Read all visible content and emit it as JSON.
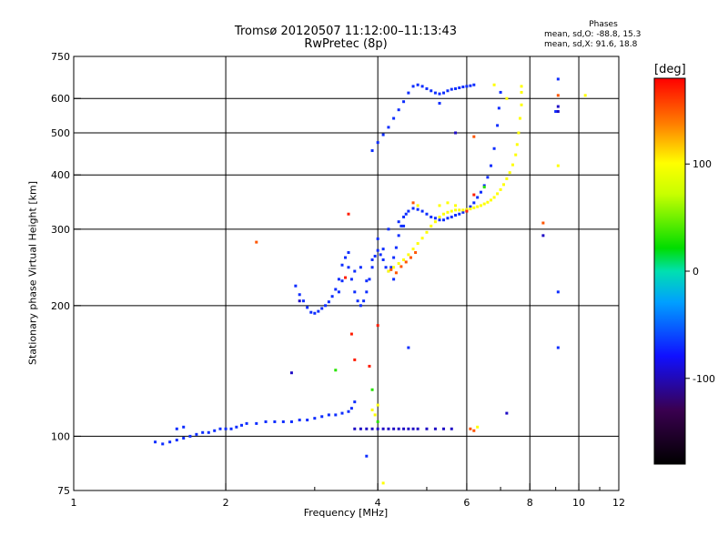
{
  "header": {
    "title": "Tromsø 20120507 11:12:00–11:13:43",
    "subtitle": "RwPretec (8p)"
  },
  "phases": {
    "title": "Phases",
    "line_o": "mean, sd,O: -88.8, 15.3",
    "line_x": "mean, sd,X:  91.6, 18.8"
  },
  "colorbar": {
    "unit": "[deg]",
    "ticks": [
      "100",
      "0",
      "-100"
    ],
    "tick_values": [
      100,
      0,
      -100
    ],
    "range": [
      -180,
      180
    ]
  },
  "chart_data": {
    "type": "scatter",
    "title": "Tromsø 20120507 11:12:00–11:13:43",
    "subtitle": "RwPretec (8p)",
    "xlabel": "Frequency [MHz]",
    "ylabel": "Stationary phase Virtual Height [km]",
    "xscale": "log",
    "yscale": "log",
    "xlim": [
      1,
      12
    ],
    "ylim": [
      75,
      750
    ],
    "xticks": [
      1,
      2,
      4,
      6,
      8,
      10,
      12
    ],
    "xtick_labels": [
      "1",
      "2",
      "4",
      "6",
      "8",
      "10",
      "12"
    ],
    "xgrid": [
      2,
      4,
      6,
      8,
      10
    ],
    "xminor": [
      3,
      5,
      7,
      9,
      11
    ],
    "yticks": [
      75,
      100,
      200,
      300,
      400,
      500,
      600,
      750
    ],
    "ytick_labels": [
      "75",
      "100",
      "200",
      "300",
      "400",
      "500",
      "600",
      "750"
    ],
    "ygrid": [
      100,
      200,
      300,
      400,
      500,
      600
    ],
    "grid": true,
    "color_scale": "phase [deg], -180 to 180",
    "series": [
      {
        "mode": "O",
        "phase_deg": -90,
        "points": [
          [
            1.45,
            97
          ],
          [
            1.5,
            96
          ],
          [
            1.55,
            97
          ],
          [
            1.6,
            98
          ],
          [
            1.65,
            99
          ],
          [
            1.7,
            100
          ],
          [
            1.75,
            101
          ],
          [
            1.8,
            102
          ],
          [
            1.85,
            102
          ],
          [
            1.9,
            103
          ],
          [
            1.95,
            104
          ],
          [
            2.0,
            104
          ],
          [
            2.05,
            104
          ],
          [
            2.1,
            105
          ],
          [
            2.15,
            106
          ],
          [
            2.2,
            107
          ],
          [
            2.3,
            107
          ],
          [
            2.4,
            108
          ],
          [
            2.5,
            108
          ],
          [
            2.6,
            108
          ],
          [
            2.7,
            108
          ],
          [
            2.8,
            109
          ],
          [
            2.9,
            109
          ],
          [
            3.0,
            110
          ],
          [
            3.1,
            111
          ],
          [
            3.2,
            112
          ],
          [
            3.3,
            112
          ],
          [
            3.4,
            113
          ],
          [
            3.5,
            114
          ],
          [
            3.55,
            116
          ],
          [
            3.6,
            120
          ],
          [
            1.6,
            104
          ],
          [
            1.65,
            105
          ],
          [
            2.75,
            222
          ],
          [
            2.8,
            212
          ],
          [
            2.85,
            205
          ],
          [
            2.9,
            198
          ],
          [
            2.95,
            193
          ],
          [
            3.0,
            192
          ],
          [
            3.05,
            194
          ],
          [
            3.1,
            197
          ],
          [
            3.15,
            200
          ],
          [
            3.2,
            204
          ],
          [
            3.25,
            210
          ],
          [
            3.3,
            218
          ],
          [
            3.35,
            230
          ],
          [
            3.4,
            248
          ],
          [
            3.45,
            258
          ],
          [
            3.5,
            245
          ],
          [
            3.55,
            230
          ],
          [
            3.6,
            215
          ],
          [
            3.65,
            205
          ],
          [
            3.7,
            200
          ],
          [
            3.75,
            205
          ],
          [
            3.8,
            215
          ],
          [
            3.85,
            230
          ],
          [
            3.9,
            245
          ],
          [
            3.95,
            260
          ],
          [
            4.0,
            268
          ],
          [
            4.05,
            262
          ],
          [
            4.1,
            255
          ],
          [
            4.15,
            245
          ],
          [
            4.2,
            240
          ],
          [
            4.25,
            245
          ],
          [
            4.3,
            258
          ],
          [
            4.35,
            272
          ],
          [
            4.4,
            290
          ],
          [
            4.45,
            305
          ],
          [
            4.5,
            320
          ],
          [
            4.55,
            325
          ],
          [
            4.6,
            330
          ],
          [
            4.7,
            335
          ],
          [
            4.8,
            333
          ],
          [
            4.9,
            330
          ],
          [
            5.0,
            325
          ],
          [
            5.1,
            320
          ],
          [
            5.2,
            318
          ],
          [
            5.3,
            315
          ],
          [
            5.4,
            315
          ],
          [
            5.5,
            318
          ],
          [
            5.6,
            320
          ],
          [
            5.7,
            323
          ],
          [
            5.8,
            325
          ],
          [
            5.9,
            328
          ],
          [
            6.0,
            332
          ],
          [
            6.1,
            338
          ],
          [
            6.2,
            345
          ],
          [
            6.3,
            355
          ],
          [
            6.4,
            365
          ],
          [
            6.5,
            378
          ],
          [
            6.6,
            395
          ],
          [
            6.7,
            420
          ],
          [
            6.8,
            460
          ],
          [
            6.9,
            520
          ],
          [
            6.95,
            570
          ],
          [
            7.0,
            620
          ],
          [
            3.4,
            228
          ],
          [
            3.6,
            240
          ],
          [
            3.8,
            228
          ],
          [
            3.9,
            255
          ],
          [
            4.1,
            270
          ],
          [
            4.3,
            230
          ],
          [
            4.5,
            305
          ],
          [
            3.35,
            215
          ],
          [
            3.5,
            265
          ],
          [
            3.7,
            245
          ],
          [
            4.0,
            285
          ],
          [
            4.2,
            300
          ],
          [
            4.4,
            312
          ],
          [
            3.9,
            455
          ],
          [
            4.0,
            475
          ],
          [
            4.1,
            495
          ],
          [
            4.2,
            515
          ],
          [
            4.3,
            540
          ],
          [
            4.4,
            565
          ],
          [
            4.5,
            590
          ],
          [
            4.6,
            618
          ],
          [
            4.7,
            640
          ],
          [
            4.8,
            645
          ],
          [
            4.9,
            640
          ],
          [
            5.0,
            632
          ],
          [
            5.1,
            625
          ],
          [
            5.2,
            618
          ],
          [
            5.3,
            615
          ],
          [
            5.4,
            618
          ],
          [
            5.5,
            625
          ],
          [
            5.6,
            630
          ],
          [
            5.7,
            632
          ],
          [
            5.8,
            635
          ],
          [
            5.9,
            638
          ],
          [
            6.0,
            640
          ],
          [
            6.1,
            642
          ],
          [
            6.2,
            645
          ],
          [
            9.1,
            665
          ],
          [
            9.0,
            560
          ],
          [
            9.1,
            215
          ],
          [
            9.1,
            160
          ],
          [
            3.8,
            90
          ],
          [
            4.6,
            160
          ],
          [
            5.3,
            585
          ]
        ]
      },
      {
        "mode": "O (cyan)",
        "phase_deg": -110,
        "points": [
          [
            3.6,
            104
          ],
          [
            3.7,
            104
          ],
          [
            3.8,
            104
          ],
          [
            3.9,
            104
          ],
          [
            4.0,
            104
          ],
          [
            4.1,
            104
          ],
          [
            4.2,
            104
          ],
          [
            4.3,
            104
          ],
          [
            4.4,
            104
          ],
          [
            4.5,
            104
          ],
          [
            4.6,
            104
          ],
          [
            4.7,
            104
          ],
          [
            4.8,
            104
          ],
          [
            5.0,
            104
          ],
          [
            5.2,
            104
          ],
          [
            5.4,
            104
          ],
          [
            5.6,
            104
          ],
          [
            2.7,
            140
          ],
          [
            2.8,
            205
          ],
          [
            7.2,
            113
          ],
          [
            8.5,
            290
          ],
          [
            9.1,
            575
          ],
          [
            9.1,
            560
          ],
          [
            5.7,
            500
          ]
        ]
      },
      {
        "mode": "X",
        "phase_deg": 100,
        "points": [
          [
            4.2,
            240
          ],
          [
            4.3,
            245
          ],
          [
            4.4,
            250
          ],
          [
            4.5,
            255
          ],
          [
            4.6,
            262
          ],
          [
            4.7,
            270
          ],
          [
            4.8,
            278
          ],
          [
            4.9,
            286
          ],
          [
            5.0,
            295
          ],
          [
            5.1,
            305
          ],
          [
            5.2,
            312
          ],
          [
            5.3,
            320
          ],
          [
            5.4,
            325
          ],
          [
            5.5,
            328
          ],
          [
            5.6,
            330
          ],
          [
            5.7,
            332
          ],
          [
            5.8,
            332
          ],
          [
            5.9,
            332
          ],
          [
            6.0,
            333
          ],
          [
            6.1,
            334
          ],
          [
            6.2,
            336
          ],
          [
            6.3,
            338
          ],
          [
            6.4,
            340
          ],
          [
            6.5,
            343
          ],
          [
            6.6,
            346
          ],
          [
            6.7,
            350
          ],
          [
            6.8,
            355
          ],
          [
            6.9,
            362
          ],
          [
            7.0,
            370
          ],
          [
            7.1,
            380
          ],
          [
            7.2,
            392
          ],
          [
            7.3,
            405
          ],
          [
            7.4,
            422
          ],
          [
            7.5,
            445
          ],
          [
            7.55,
            470
          ],
          [
            7.6,
            500
          ],
          [
            7.65,
            540
          ],
          [
            7.7,
            580
          ],
          [
            7.7,
            620
          ],
          [
            7.7,
            640
          ],
          [
            5.3,
            340
          ],
          [
            5.5,
            345
          ],
          [
            5.7,
            340
          ],
          [
            4.8,
            340
          ],
          [
            3.9,
            115
          ],
          [
            4.0,
            118
          ],
          [
            3.95,
            112
          ],
          [
            6.8,
            645
          ],
          [
            7.2,
            600
          ],
          [
            6.3,
            105
          ],
          [
            4.1,
            78
          ],
          [
            9.1,
            420
          ],
          [
            10.3,
            610
          ]
        ]
      },
      {
        "mode": "X (orange)",
        "phase_deg": 150,
        "points": [
          [
            4.25,
            242
          ],
          [
            4.35,
            238
          ],
          [
            4.45,
            246
          ],
          [
            4.55,
            252
          ],
          [
            4.65,
            258
          ],
          [
            4.75,
            265
          ],
          [
            8.5,
            310
          ],
          [
            6.1,
            104
          ],
          [
            6.2,
            103
          ],
          [
            2.3,
            280
          ],
          [
            6.2,
            490
          ],
          [
            9.1,
            610
          ],
          [
            4.7,
            345
          ]
        ]
      },
      {
        "mode": "noise",
        "phase_deg": 170,
        "points": [
          [
            3.5,
            325
          ],
          [
            3.45,
            232
          ],
          [
            4.0,
            180
          ],
          [
            3.55,
            172
          ],
          [
            3.6,
            150
          ],
          [
            3.85,
            145
          ],
          [
            6.0,
            330
          ],
          [
            6.2,
            360
          ]
        ]
      },
      {
        "mode": "noise (green)",
        "phase_deg": 30,
        "points": [
          [
            3.3,
            142
          ],
          [
            3.9,
            128
          ],
          [
            6.5,
            375
          ],
          [
            4.0,
            108
          ]
        ]
      }
    ]
  }
}
